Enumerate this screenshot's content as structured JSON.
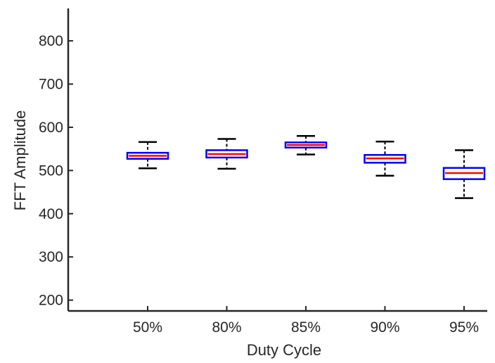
{
  "chart_data": {
    "type": "box",
    "xlabel": "Duty Cycle",
    "ylabel": "FFT Amplitude",
    "ylim": [
      175,
      875
    ],
    "yticks": [
      200,
      300,
      400,
      500,
      600,
      700,
      800
    ],
    "categories": [
      "50%",
      "80%",
      "85%",
      "90%",
      "95%"
    ],
    "boxes": [
      {
        "category": "50%",
        "whisker_low": 505,
        "q1": 527,
        "median": 534,
        "q3": 541,
        "whisker_high": 566
      },
      {
        "category": "80%",
        "whisker_low": 504,
        "q1": 530,
        "median": 538,
        "q3": 547,
        "whisker_high": 573
      },
      {
        "category": "85%",
        "whisker_low": 537,
        "q1": 553,
        "median": 559,
        "q3": 565,
        "whisker_high": 580
      },
      {
        "category": "90%",
        "whisker_low": 488,
        "q1": 518,
        "median": 528,
        "q3": 536,
        "whisker_high": 567
      },
      {
        "category": "95%",
        "whisker_low": 436,
        "q1": 480,
        "median": 494,
        "q3": 506,
        "whisker_high": 547
      }
    ],
    "colors": {
      "box": "#0000ff",
      "median": "#ff0000",
      "whisker": "#000000",
      "axis": "#262626"
    },
    "grid": false,
    "legend": "none"
  }
}
